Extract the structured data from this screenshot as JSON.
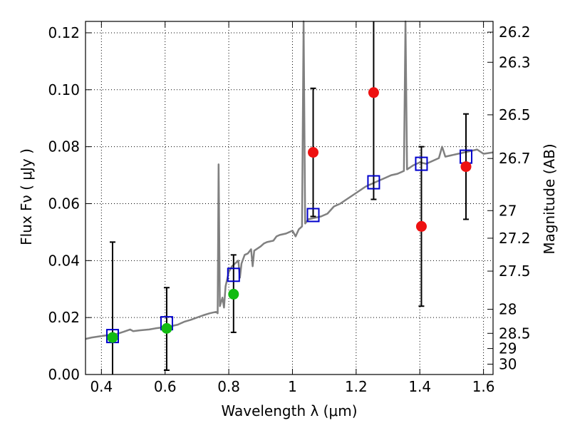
{
  "chart_data": {
    "type": "scatter",
    "xlabel": "Wavelength  λ (μm)",
    "ylabel": "Flux  Fν  ( μJy )",
    "y2label": "Magnitude (AB)",
    "xlim": [
      0.35,
      1.63
    ],
    "ylim": [
      0.0,
      0.124
    ],
    "grid": true,
    "grid_style": "dotted",
    "x_ticks": [
      0.4,
      0.6,
      0.8,
      1.0,
      1.2,
      1.4,
      1.6
    ],
    "x_tick_labels": [
      "0.4",
      "0.6",
      "0.8",
      "1",
      "1.2",
      "1.4",
      "1.6"
    ],
    "y_ticks": [
      0.0,
      0.02,
      0.04,
      0.06,
      0.08,
      0.1,
      0.12
    ],
    "y_tick_labels": [
      "0.00",
      "0.02",
      "0.04",
      "0.06",
      "0.08",
      "0.10",
      "0.12"
    ],
    "y2_ticks": [
      {
        "label": "26.2",
        "mag": 26.2
      },
      {
        "label": "26.3",
        "mag": 26.3
      },
      {
        "label": "26.5",
        "mag": 26.5
      },
      {
        "label": "26.7",
        "mag": 26.7
      },
      {
        "label": "27",
        "mag": 27.0
      },
      {
        "label": "27.2",
        "mag": 27.2
      },
      {
        "label": "27.5",
        "mag": 27.5
      },
      {
        "label": "28",
        "mag": 28.0
      },
      {
        "label": "28.5",
        "mag": 28.5
      },
      {
        "label": "29",
        "mag": 29.0
      },
      {
        "label": "30",
        "mag": 30.0
      }
    ],
    "colors": {
      "spectrum": "#808080",
      "model": "#0000cc",
      "observed": "#ee1111",
      "detected": "#11bb11",
      "errorbar": "#000000"
    },
    "spectrum": [
      [
        0.35,
        0.0125
      ],
      [
        0.37,
        0.013
      ],
      [
        0.4,
        0.0135
      ],
      [
        0.42,
        0.0138
      ],
      [
        0.45,
        0.0143
      ],
      [
        0.47,
        0.015
      ],
      [
        0.49,
        0.0158
      ],
      [
        0.5,
        0.0152
      ],
      [
        0.52,
        0.0155
      ],
      [
        0.55,
        0.0158
      ],
      [
        0.57,
        0.0162
      ],
      [
        0.59,
        0.0165
      ],
      [
        0.62,
        0.017
      ],
      [
        0.64,
        0.0175
      ],
      [
        0.66,
        0.0185
      ],
      [
        0.68,
        0.0192
      ],
      [
        0.7,
        0.02
      ],
      [
        0.72,
        0.0208
      ],
      [
        0.74,
        0.0215
      ],
      [
        0.76,
        0.022
      ],
      [
        0.765,
        0.0215
      ],
      [
        0.768,
        0.0738
      ],
      [
        0.772,
        0.024
      ],
      [
        0.78,
        0.027
      ],
      [
        0.785,
        0.0235
      ],
      [
        0.79,
        0.031
      ],
      [
        0.8,
        0.036
      ],
      [
        0.81,
        0.038
      ],
      [
        0.82,
        0.039
      ],
      [
        0.83,
        0.04
      ],
      [
        0.835,
        0.034
      ],
      [
        0.84,
        0.039
      ],
      [
        0.85,
        0.042
      ],
      [
        0.86,
        0.0425
      ],
      [
        0.87,
        0.044
      ],
      [
        0.875,
        0.038
      ],
      [
        0.88,
        0.0435
      ],
      [
        0.9,
        0.045
      ],
      [
        0.91,
        0.046
      ],
      [
        0.92,
        0.0465
      ],
      [
        0.94,
        0.047
      ],
      [
        0.95,
        0.0485
      ],
      [
        0.96,
        0.049
      ],
      [
        0.98,
        0.0495
      ],
      [
        1.0,
        0.0505
      ],
      [
        1.01,
        0.0485
      ],
      [
        1.02,
        0.051
      ],
      [
        1.03,
        0.052
      ],
      [
        1.035,
        0.124
      ],
      [
        1.04,
        0.053
      ],
      [
        1.05,
        0.0545
      ],
      [
        1.07,
        0.055
      ],
      [
        1.09,
        0.0555
      ],
      [
        1.11,
        0.0565
      ],
      [
        1.13,
        0.059
      ],
      [
        1.15,
        0.06
      ],
      [
        1.17,
        0.0615
      ],
      [
        1.19,
        0.063
      ],
      [
        1.21,
        0.0645
      ],
      [
        1.23,
        0.066
      ],
      [
        1.25,
        0.067
      ],
      [
        1.27,
        0.068
      ],
      [
        1.29,
        0.069
      ],
      [
        1.31,
        0.07
      ],
      [
        1.33,
        0.0705
      ],
      [
        1.35,
        0.0715
      ],
      [
        1.355,
        0.124
      ],
      [
        1.36,
        0.072
      ],
      [
        1.38,
        0.0735
      ],
      [
        1.4,
        0.0745
      ],
      [
        1.42,
        0.074
      ],
      [
        1.44,
        0.075
      ],
      [
        1.46,
        0.076
      ],
      [
        1.47,
        0.08
      ],
      [
        1.48,
        0.0765
      ],
      [
        1.5,
        0.077
      ],
      [
        1.52,
        0.0775
      ],
      [
        1.54,
        0.078
      ],
      [
        1.56,
        0.0785
      ],
      [
        1.58,
        0.079
      ],
      [
        1.6,
        0.0775
      ],
      [
        1.63,
        0.078
      ]
    ],
    "model_points": [
      {
        "x": 0.435,
        "y": 0.0135
      },
      {
        "x": 0.605,
        "y": 0.018
      },
      {
        "x": 0.815,
        "y": 0.035
      },
      {
        "x": 1.065,
        "y": 0.056
      },
      {
        "x": 1.255,
        "y": 0.0675
      },
      {
        "x": 1.405,
        "y": 0.074
      },
      {
        "x": 1.545,
        "y": 0.0765
      }
    ],
    "observed_points": [
      {
        "x": 0.435,
        "y": 0.013,
        "err_low": 0.0,
        "err_high": 0.0465,
        "color": "detected"
      },
      {
        "x": 0.605,
        "y": 0.0162,
        "err_low": 0.0015,
        "err_high": 0.0305,
        "color": "detected"
      },
      {
        "x": 0.815,
        "y": 0.0282,
        "err_low": 0.0148,
        "err_high": 0.042,
        "color": "detected"
      },
      {
        "x": 1.065,
        "y": 0.078,
        "err_low": 0.0555,
        "err_high": 0.1005,
        "color": "observed"
      },
      {
        "x": 1.255,
        "y": 0.099,
        "err_low": 0.0615,
        "err_high": 0.124,
        "color": "observed"
      },
      {
        "x": 1.405,
        "y": 0.052,
        "err_low": 0.024,
        "err_high": 0.08,
        "color": "observed"
      },
      {
        "x": 1.545,
        "y": 0.073,
        "err_low": 0.0545,
        "err_high": 0.0915,
        "color": "observed"
      }
    ]
  }
}
